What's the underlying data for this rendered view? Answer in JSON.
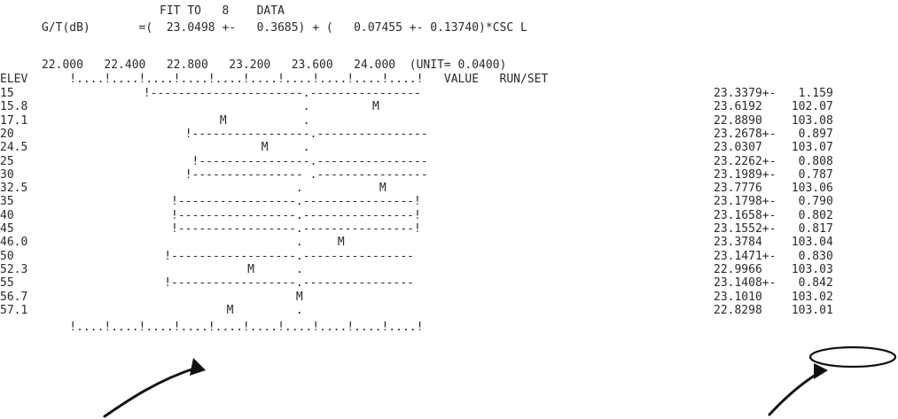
{
  "header": {
    "title_line": "                       FIT TO   8    DATA",
    "fit_line": "      G/T(dB)       =(  23.0498 +-   0.3685) + (   0.07455 +- 0.13740)*CSC L"
  },
  "scale": {
    "axis_values_line": "      22.000   22.400   22.800   23.200   23.600   24.000  (UNIT= 0.0400)",
    "tick_line": "ELEV      !....!....!....!....!....!....!....!....!....!....!   VALUE   RUN/SET"
  },
  "rows": [
    {
      "elev": "15",
      "plot": "             !----------------------.----------------",
      "value": "23.3379+-",
      "run_set": "  1.159"
    },
    {
      "elev": "15.8",
      "plot": "                                    .         M      ",
      "value": "23.6192",
      "run_set": " 102.07"
    },
    {
      "elev": "17.1",
      "plot": "                        M           .                ",
      "value": "22.8890",
      "run_set": " 103.08"
    },
    {
      "elev": "20",
      "plot": "                   !-----------------.----------------",
      "value": "23.2678+-",
      "run_set": "  0.897"
    },
    {
      "elev": "24.5",
      "plot": "                              M     .                ",
      "value": "23.0307",
      "run_set": " 103.07"
    },
    {
      "elev": "25",
      "plot": "                    !----------------.----------------",
      "value": "23.2262+-",
      "run_set": "  0.808"
    },
    {
      "elev": "30",
      "plot": "                   !---------------- .----------------",
      "value": "23.1989+-",
      "run_set": "  0.787"
    },
    {
      "elev": "32.5",
      "plot": "                                   .           M      ",
      "value": "23.7776",
      "run_set": " 103.06"
    },
    {
      "elev": "35",
      "plot": "                 !-----------------.----------------!",
      "value": "23.1798+-",
      "run_set": "  0.790"
    },
    {
      "elev": "40",
      "plot": "                 !-----------------.----------------!",
      "value": "23.1658+-",
      "run_set": "  0.802"
    },
    {
      "elev": "45",
      "plot": "                 !-----------------.----------------!",
      "value": "23.1552+-",
      "run_set": "  0.817"
    },
    {
      "elev": "46.0",
      "plot": "                                   .     M            ",
      "value": "23.3784",
      "run_set": " 103.04"
    },
    {
      "elev": "50",
      "plot": "                !------------------.----------------",
      "value": "23.1471+-",
      "run_set": "  0.830"
    },
    {
      "elev": "52.3",
      "plot": "                            M      .                ",
      "value": "22.9966",
      "run_set": " 103.03"
    },
    {
      "elev": "55",
      "plot": "                !------------------.----------------",
      "value": "23.1408+-",
      "run_set": "  0.842"
    },
    {
      "elev": "56.7",
      "plot": "                                   M                ",
      "value": "23.1010",
      "run_set": " 103.02"
    },
    {
      "elev": "57.1",
      "plot": "                         M         .                ",
      "value": "22.8298",
      "run_set": " 103.01"
    }
  ],
  "footer": {
    "tick_line": "          !....!....!....!....!....!....!....!....!....!....!"
  }
}
